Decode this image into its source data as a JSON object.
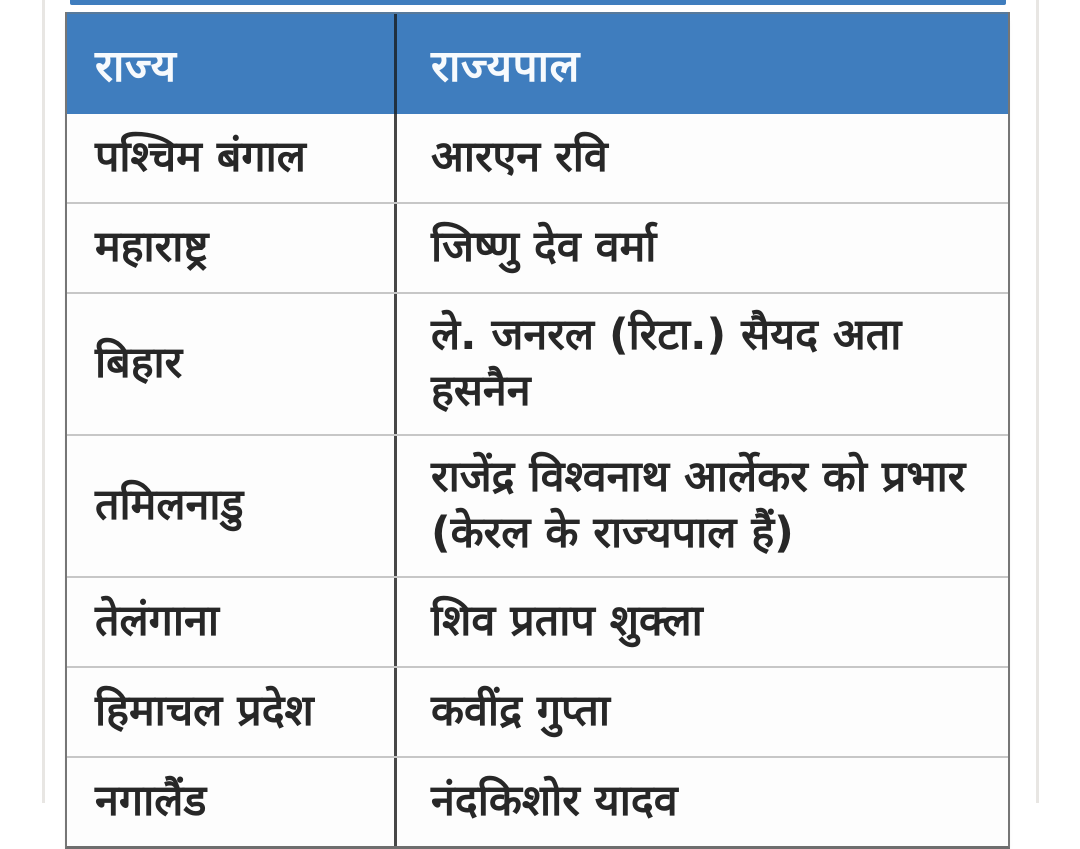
{
  "table": {
    "header": {
      "state_label": "राज्य",
      "governor_label": "राज्यपाल"
    },
    "rows": [
      {
        "state": "पश्चिम बंगाल",
        "governor": "आरएन रवि"
      },
      {
        "state": "महाराष्ट्र",
        "governor": "जिष्णु देव वर्मा"
      },
      {
        "state": "बिहार",
        "governor": "ले. जनरल (रिटा.) सैयद अता हसनैन"
      },
      {
        "state": "तमिलनाडु",
        "governor": "राजेंद्र विश्वनाथ आर्लेकर को प्रभार\n(केरल के राज्यपाल हैं)"
      },
      {
        "state": "तेलंगाना",
        "governor": "शिव प्रताप शुक्ला"
      },
      {
        "state": "हिमाचल प्रदेश",
        "governor": "कवींद्र गुप्ता"
      },
      {
        "state": "नगालैंड",
        "governor": "नंदकिशोर यादव"
      }
    ],
    "colors": {
      "header_bg": "#3f7dbe",
      "header_text": "#f7fafd",
      "body_text": "#272727",
      "row_divider": "#c7c7c7",
      "column_divider": "#474747",
      "outer_border": "#6e6e6e"
    }
  },
  "chart_data": {
    "type": "table",
    "title": "",
    "columns": [
      "राज्य",
      "राज्यपाल"
    ],
    "rows": [
      [
        "पश्चिम बंगाल",
        "आरएन रवि"
      ],
      [
        "महाराष्ट्र",
        "जिष्णु देव वर्मा"
      ],
      [
        "बिहार",
        "ले. जनरल (रिटा.) सैयद अता हसनैन"
      ],
      [
        "तमिलनाडु",
        "राजेंद्र विश्वनाथ आर्लेकर को प्रभार (केरल के राज्यपाल हैं)"
      ],
      [
        "तेलंगाना",
        "शिव प्रताप शुक्ला"
      ],
      [
        "हिमाचल प्रदेश",
        "कवींद्र गुप्ता"
      ],
      [
        "नगालैंड",
        "नंदकिशोर यादव"
      ]
    ],
    "layout": {
      "header_position": "top",
      "grid": true
    }
  }
}
